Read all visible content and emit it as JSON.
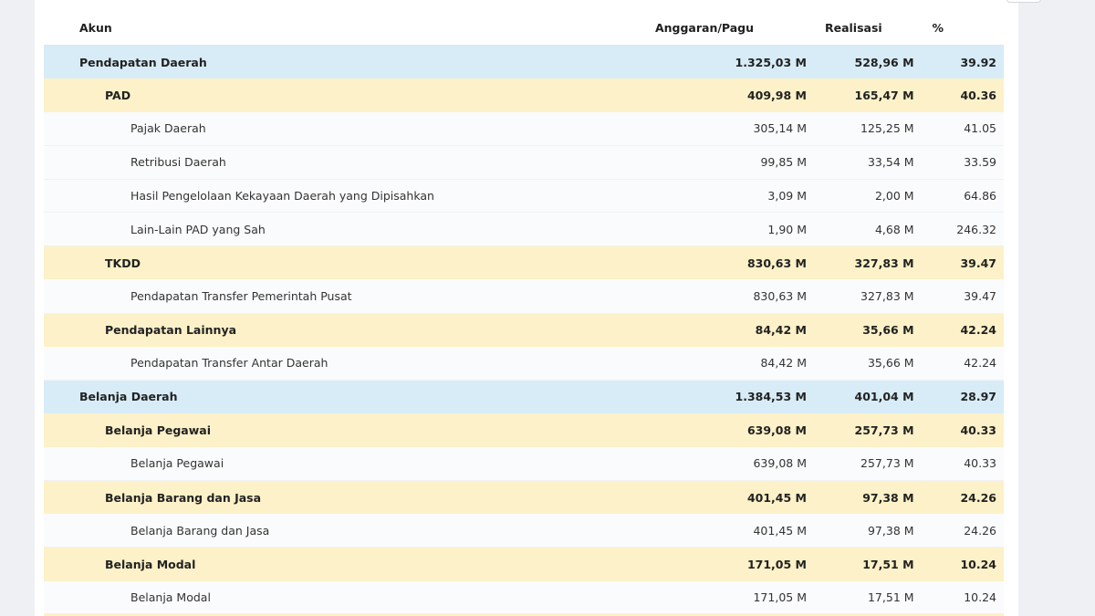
{
  "header": {
    "akun": "Akun",
    "anggaran": "Anggaran/Pagu",
    "realisasi": "Realisasi",
    "persen": "%"
  },
  "rows": [
    {
      "level": 0,
      "akun": "Pendapatan Daerah",
      "anggaran": "1.325,03 M",
      "realisasi": "528,96 M",
      "persen": "39.92"
    },
    {
      "level": 1,
      "akun": "PAD",
      "anggaran": "409,98 M",
      "realisasi": "165,47 M",
      "persen": "40.36"
    },
    {
      "level": 2,
      "akun": "Pajak Daerah",
      "anggaran": "305,14 M",
      "realisasi": "125,25 M",
      "persen": "41.05"
    },
    {
      "level": 2,
      "akun": "Retribusi Daerah",
      "anggaran": "99,85 M",
      "realisasi": "33,54 M",
      "persen": "33.59"
    },
    {
      "level": 2,
      "akun": "Hasil Pengelolaan Kekayaan Daerah yang Dipisahkan",
      "anggaran": "3,09 M",
      "realisasi": "2,00 M",
      "persen": "64.86"
    },
    {
      "level": 2,
      "akun": "Lain-Lain PAD yang Sah",
      "anggaran": "1,90 M",
      "realisasi": "4,68 M",
      "persen": "246.32"
    },
    {
      "level": 1,
      "akun": "TKDD",
      "anggaran": "830,63 M",
      "realisasi": "327,83 M",
      "persen": "39.47"
    },
    {
      "level": 2,
      "akun": "Pendapatan Transfer Pemerintah Pusat",
      "anggaran": "830,63 M",
      "realisasi": "327,83 M",
      "persen": "39.47"
    },
    {
      "level": 1,
      "akun": "Pendapatan Lainnya",
      "anggaran": "84,42 M",
      "realisasi": "35,66 M",
      "persen": "42.24"
    },
    {
      "level": 2,
      "akun": "Pendapatan Transfer Antar Daerah",
      "anggaran": "84,42 M",
      "realisasi": "35,66 M",
      "persen": "42.24"
    },
    {
      "level": 0,
      "akun": "Belanja Daerah",
      "anggaran": "1.384,53 M",
      "realisasi": "401,04 M",
      "persen": "28.97"
    },
    {
      "level": 1,
      "akun": "Belanja Pegawai",
      "anggaran": "639,08 M",
      "realisasi": "257,73 M",
      "persen": "40.33"
    },
    {
      "level": 2,
      "akun": "Belanja Pegawai",
      "anggaran": "639,08 M",
      "realisasi": "257,73 M",
      "persen": "40.33"
    },
    {
      "level": 1,
      "akun": "Belanja Barang dan Jasa",
      "anggaran": "401,45 M",
      "realisasi": "97,38 M",
      "persen": "24.26"
    },
    {
      "level": 2,
      "akun": "Belanja Barang dan Jasa",
      "anggaran": "401,45 M",
      "realisasi": "97,38 M",
      "persen": "24.26"
    },
    {
      "level": 1,
      "akun": "Belanja Modal",
      "anggaran": "171,05 M",
      "realisasi": "17,51 M",
      "persen": "10.24"
    },
    {
      "level": 2,
      "akun": "Belanja Modal",
      "anggaran": "171,05 M",
      "realisasi": "17,51 M",
      "persen": "10.24"
    }
  ],
  "colors": {
    "level0_bg": "#d8ecf7",
    "level1_bg": "#fcf1c8",
    "level2_bg": "#fafbfc"
  }
}
